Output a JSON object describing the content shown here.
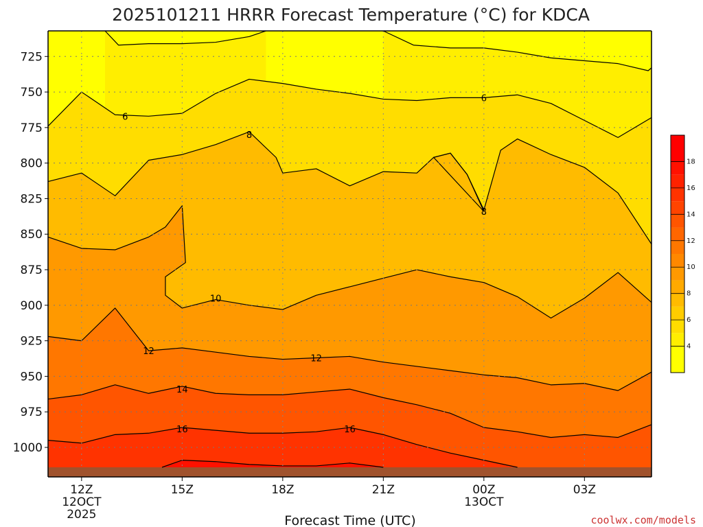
{
  "chart_data": {
    "type": "contour",
    "title": "2025101211 HRRR Forecast Temperature (°C) for KDCA",
    "xlabel": "Forecast Time (UTC)",
    "ylabel": "",
    "credit": "coolwx.com/models",
    "x_ticks": [
      {
        "h": 12,
        "lines": [
          "12Z",
          "12OCT",
          "2025"
        ]
      },
      {
        "h": 15,
        "lines": [
          "15Z"
        ]
      },
      {
        "h": 18,
        "lines": [
          "18Z"
        ]
      },
      {
        "h": 21,
        "lines": [
          "21Z"
        ]
      },
      {
        "h": 24,
        "lines": [
          "00Z",
          "13OCT"
        ]
      },
      {
        "h": 27,
        "lines": [
          "03Z"
        ]
      }
    ],
    "xlim": [
      11,
      29
    ],
    "y_ticks": [
      725,
      750,
      775,
      800,
      825,
      850,
      875,
      900,
      925,
      950,
      975,
      1000
    ],
    "ylim": [
      707,
      1014
    ],
    "y_reversed": true,
    "grid": true,
    "colorbar": {
      "ticks": [
        4,
        6,
        8,
        10,
        12,
        14,
        16,
        18
      ],
      "levels": [
        {
          "min": 2,
          "max": 4,
          "color": "#ffff00"
        },
        {
          "min": 4,
          "max": 5,
          "color": "#ffee00"
        },
        {
          "min": 5,
          "max": 6,
          "color": "#ffdd00"
        },
        {
          "min": 6,
          "max": 7,
          "color": "#ffcc00"
        },
        {
          "min": 7,
          "max": 8,
          "color": "#ffbb00"
        },
        {
          "min": 8,
          "max": 9,
          "color": "#ffaa00"
        },
        {
          "min": 9,
          "max": 10,
          "color": "#ff9900"
        },
        {
          "min": 10,
          "max": 11,
          "color": "#ff8800"
        },
        {
          "min": 11,
          "max": 12,
          "color": "#ff7700"
        },
        {
          "min": 12,
          "max": 13,
          "color": "#ff6600"
        },
        {
          "min": 13,
          "max": 14,
          "color": "#ff5500"
        },
        {
          "min": 14,
          "max": 15,
          "color": "#ff4400"
        },
        {
          "min": 15,
          "max": 16,
          "color": "#ff3300"
        },
        {
          "min": 16,
          "max": 17,
          "color": "#ff2200"
        },
        {
          "min": 17,
          "max": 18,
          "color": "#ff1100"
        },
        {
          "min": 18,
          "max": 20,
          "color": "#ff0000"
        }
      ]
    },
    "ground_color": "#a0522d",
    "contours": [
      {
        "value": 5,
        "label": "",
        "fill": "#ffee00",
        "points": [
          [
            12.7,
            707
          ],
          [
            13.1,
            717
          ],
          [
            14.0,
            716
          ],
          [
            15.0,
            716
          ],
          [
            16.0,
            715
          ],
          [
            17.0,
            711
          ],
          [
            17.5,
            707
          ]
        ]
      },
      {
        "value": 5,
        "label": "",
        "fill": "#ffee00",
        "points": [
          [
            21.0,
            707
          ],
          [
            21.9,
            717
          ],
          [
            23.0,
            719
          ],
          [
            24.0,
            719
          ],
          [
            25.0,
            722
          ],
          [
            26.0,
            726
          ],
          [
            27.0,
            728
          ],
          [
            28.0,
            730
          ],
          [
            28.9,
            735
          ],
          [
            29.0,
            733
          ]
        ]
      },
      {
        "value": 6,
        "label": "6",
        "fill": "#ffdd00",
        "points": [
          [
            11.0,
            774
          ],
          [
            12.0,
            750
          ],
          [
            13.0,
            766
          ],
          [
            14.0,
            767
          ],
          [
            15.0,
            765
          ],
          [
            16.0,
            751
          ],
          [
            17.0,
            741
          ],
          [
            18.0,
            744
          ],
          [
            19.0,
            748
          ],
          [
            20.0,
            751
          ],
          [
            21.0,
            755
          ],
          [
            22.0,
            756
          ],
          [
            23.0,
            754
          ],
          [
            24.0,
            754
          ],
          [
            25.0,
            752
          ],
          [
            26.0,
            758
          ],
          [
            27.0,
            770
          ],
          [
            28.0,
            782
          ],
          [
            29.0,
            768
          ]
        ]
      },
      {
        "value": 8,
        "label": "8",
        "fill": "#ffbb00",
        "points": [
          [
            11.0,
            813
          ],
          [
            12.0,
            807
          ],
          [
            13.0,
            823
          ],
          [
            14.0,
            798
          ],
          [
            15.0,
            794
          ],
          [
            16.0,
            787
          ],
          [
            17.0,
            778
          ],
          [
            17.8,
            796
          ],
          [
            18.0,
            807
          ],
          [
            19.0,
            804
          ],
          [
            20.0,
            816
          ],
          [
            21.0,
            806
          ],
          [
            22.0,
            807
          ],
          [
            22.5,
            796
          ],
          [
            23.0,
            793
          ],
          [
            23.5,
            808
          ],
          [
            24.0,
            833
          ],
          [
            24.5,
            791
          ],
          [
            25.0,
            783
          ],
          [
            26.0,
            794
          ],
          [
            27.0,
            803
          ],
          [
            28.0,
            821
          ],
          [
            29.0,
            857
          ]
        ]
      },
      {
        "value": 8,
        "label": "8",
        "fill": "#ffbb00",
        "points": [
          [
            24.0,
            834
          ],
          [
            23.5,
            808
          ],
          [
            23.0,
            793
          ],
          [
            22.5,
            796
          ],
          [
            24.0,
            834
          ]
        ]
      },
      {
        "value": 10,
        "label": "10",
        "fill": "#ff9900",
        "points": [
          [
            11.0,
            852
          ],
          [
            12.0,
            860
          ],
          [
            13.0,
            861
          ],
          [
            14.0,
            852
          ],
          [
            14.5,
            845
          ],
          [
            15.0,
            830
          ],
          [
            15.1,
            870
          ],
          [
            14.5,
            880
          ],
          [
            14.5,
            893
          ],
          [
            15.0,
            902
          ],
          [
            16.0,
            896
          ],
          [
            17.0,
            900
          ],
          [
            18.0,
            903
          ],
          [
            19.0,
            893
          ],
          [
            20.0,
            887
          ],
          [
            21.0,
            881
          ],
          [
            22.0,
            875
          ],
          [
            23.0,
            880
          ],
          [
            24.0,
            884
          ],
          [
            25.0,
            894
          ],
          [
            26.0,
            909
          ],
          [
            27.0,
            895
          ],
          [
            28.0,
            877
          ],
          [
            29.0,
            898
          ]
        ]
      },
      {
        "value": 12,
        "label": "12",
        "fill": "#ff7700",
        "points": [
          [
            11.0,
            922
          ],
          [
            12.0,
            925
          ],
          [
            13.0,
            902
          ],
          [
            14.0,
            932
          ],
          [
            15.0,
            930
          ],
          [
            16.0,
            933
          ],
          [
            17.0,
            936
          ],
          [
            18.0,
            938
          ],
          [
            19.0,
            937
          ],
          [
            20.0,
            936
          ],
          [
            21.0,
            940
          ],
          [
            22.0,
            943
          ],
          [
            23.0,
            946
          ],
          [
            24.0,
            949
          ],
          [
            25.0,
            951
          ],
          [
            26.0,
            956
          ],
          [
            27.0,
            955
          ],
          [
            28.0,
            960
          ],
          [
            29.0,
            947
          ]
        ]
      },
      {
        "value": 14,
        "label": "14",
        "fill": "#ff5500",
        "points": [
          [
            11.0,
            966
          ],
          [
            12.0,
            963
          ],
          [
            13.0,
            956
          ],
          [
            14.0,
            962
          ],
          [
            15.0,
            957
          ],
          [
            16.0,
            962
          ],
          [
            17.0,
            963
          ],
          [
            18.0,
            963
          ],
          [
            19.0,
            961
          ],
          [
            20.0,
            959
          ],
          [
            21.0,
            965
          ],
          [
            22.0,
            970
          ],
          [
            23.0,
            976
          ],
          [
            24.0,
            986
          ],
          [
            25.0,
            989
          ],
          [
            26.0,
            993
          ],
          [
            27.0,
            991
          ],
          [
            28.0,
            993
          ],
          [
            29.0,
            984
          ]
        ]
      },
      {
        "value": 16,
        "label": "16",
        "fill": "#ff3300",
        "points": [
          [
            11.0,
            995
          ],
          [
            12.0,
            997
          ],
          [
            13.0,
            991
          ],
          [
            14.0,
            990
          ],
          [
            15.0,
            986
          ],
          [
            16.0,
            988
          ],
          [
            17.0,
            990
          ],
          [
            18.0,
            990
          ],
          [
            19.0,
            989
          ],
          [
            20.0,
            986
          ],
          [
            21.0,
            991
          ],
          [
            22.0,
            998
          ],
          [
            23.0,
            1004
          ],
          [
            24.0,
            1009
          ],
          [
            25.0,
            1014
          ]
        ]
      },
      {
        "value": 18,
        "label": "",
        "fill": "#ff1100",
        "points": [
          [
            14.4,
            1014
          ],
          [
            15.0,
            1009
          ],
          [
            16.0,
            1010
          ],
          [
            17.0,
            1012
          ],
          [
            18.0,
            1013
          ],
          [
            19.0,
            1013
          ],
          [
            20.0,
            1011
          ],
          [
            21.0,
            1014
          ]
        ]
      }
    ],
    "contour_labels": [
      {
        "text": "6",
        "x": 13.3,
        "p": 767
      },
      {
        "text": "8",
        "x": 17.0,
        "p": 780
      },
      {
        "text": "8",
        "x": 24.0,
        "p": 834
      },
      {
        "text": "6",
        "x": 24.0,
        "p": 754
      },
      {
        "text": "10",
        "x": 16.0,
        "p": 895
      },
      {
        "text": "12",
        "x": 14.0,
        "p": 932
      },
      {
        "text": "12",
        "x": 19.0,
        "p": 937
      },
      {
        "text": "14",
        "x": 15.0,
        "p": 959
      },
      {
        "text": "16",
        "x": 15.0,
        "p": 987
      },
      {
        "text": "16",
        "x": 20.0,
        "p": 987
      }
    ]
  }
}
